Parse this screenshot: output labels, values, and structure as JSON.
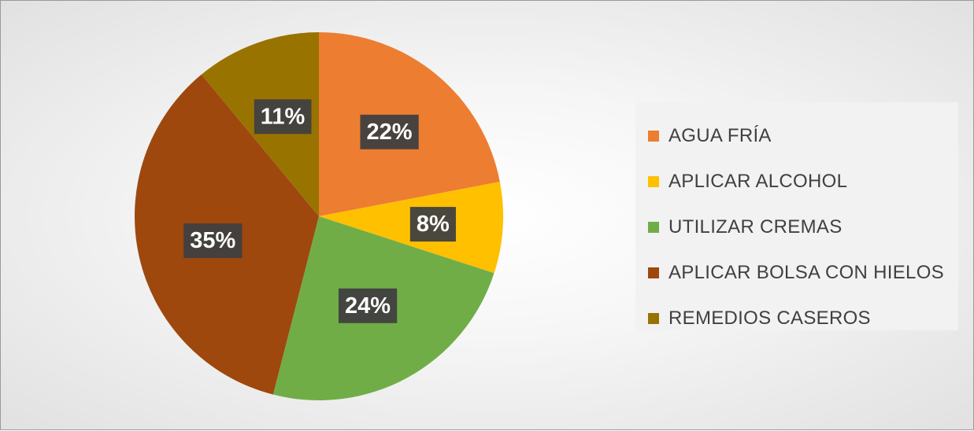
{
  "chart_data": {
    "type": "pie",
    "categories": [
      "AGUA FRÍA",
      "APLICAR ALCOHOL",
      "UTILIZAR CREMAS",
      "APLICAR BOLSA CON HIELOS",
      "REMEDIOS CASEROS"
    ],
    "values": [
      22,
      8,
      24,
      35,
      11
    ],
    "data_labels": [
      "22%",
      "8%",
      "24%",
      "35%",
      "11%"
    ],
    "colors": [
      "#ED7D31",
      "#FFC000",
      "#70AD47",
      "#9E480E",
      "#997300"
    ],
    "start_angle_deg": 0,
    "direction": "clockwise",
    "legend_position": "right",
    "title": ""
  }
}
